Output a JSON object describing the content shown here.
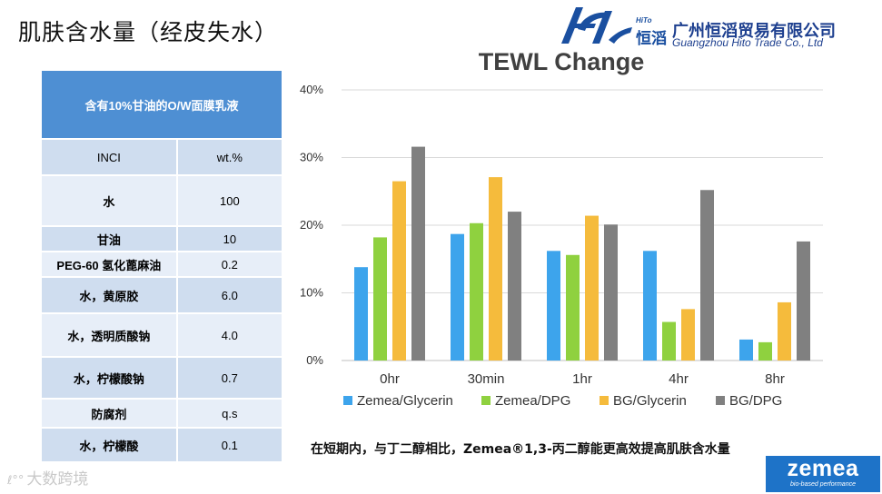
{
  "slide": {
    "title": "肌肤含水量（经皮失水）",
    "caption": "在短期内，与丁二醇相比，Zemea®1,3-丙二醇能更高效提高肌肤含水量",
    "watermark": "大数跨境"
  },
  "logo": {
    "hito": "HiTo",
    "mark_cn": "恒滔",
    "company_cn": "广州恒滔贸易有限公司",
    "company_en": "Guangzhou Hito Trade Co., Ltd"
  },
  "brand": {
    "name": "zemea",
    "tagline": "bio-based performance"
  },
  "table": {
    "header": "含有10%甘油的O/W面膜乳液",
    "columns": [
      "INCI",
      "wt.%"
    ],
    "rows": [
      {
        "name": "水",
        "value": "100"
      },
      {
        "name": "甘油",
        "value": "10"
      },
      {
        "name": "PEG-60 氢化蓖麻油",
        "value": "0.2"
      },
      {
        "name": "水，黄原胶",
        "value": "6.0"
      },
      {
        "name": "水，透明质酸钠",
        "value": "4.0"
      },
      {
        "name": "水，柠檬酸钠",
        "value": "0.7"
      },
      {
        "name": "防腐剂",
        "value": "q.s"
      },
      {
        "name": "水，柠檬酸",
        "value": "0.1"
      }
    ]
  },
  "chart_data": {
    "type": "bar",
    "title": "TEWL Change",
    "categories": [
      "0hr",
      "30min",
      "1hr",
      "4hr",
      "8hr"
    ],
    "series": [
      {
        "name": "Zemea/Glycerin",
        "color": "#3da4ec",
        "values": [
          13.8,
          18.7,
          16.2,
          16.2,
          3.1
        ]
      },
      {
        "name": "Zemea/DPG",
        "color": "#8fd13f",
        "values": [
          18.2,
          20.3,
          15.6,
          5.7,
          2.7
        ]
      },
      {
        "name": "BG/Glycerin",
        "color": "#f5bb3c",
        "values": [
          26.5,
          27.1,
          21.4,
          7.6,
          8.6
        ]
      },
      {
        "name": "BG/DPG",
        "color": "#808080",
        "values": [
          31.6,
          22.0,
          20.1,
          25.2,
          17.6
        ]
      }
    ],
    "yticks": [
      "0%",
      "10%",
      "20%",
      "30%",
      "40%"
    ],
    "ylim": [
      0,
      40
    ],
    "grid": true,
    "legend": "bottom"
  }
}
